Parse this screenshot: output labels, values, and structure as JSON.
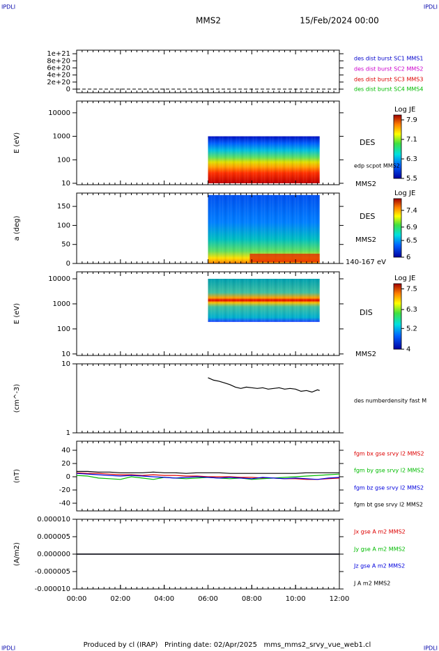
{
  "header": {
    "corner_labels": [
      "IPDLI",
      "IPDLI",
      "IPDLI",
      "IPDLI"
    ],
    "mission": "MMS2",
    "date": "15/Feb/2024 00:00"
  },
  "chart_data": [
    {
      "type": "line",
      "xlim": [
        0,
        12
      ],
      "ylim": [
        -1e+20,
        1.1e+21
      ],
      "yticks": [
        0,
        {
          "value": 2e+20,
          "label": "2e+20"
        },
        {
          "value": 4e+20,
          "label": "4e+20"
        },
        {
          "value": 6e+20,
          "label": "6e+20"
        },
        {
          "value": 8e+20,
          "label": "8e+20"
        },
        {
          "value": 1e+21,
          "label": "1e+21"
        }
      ],
      "series": [
        {
          "name": "des dist burst SC1 MMS1",
          "color": "#0000cc"
        },
        {
          "name": "des dist burst SC2 MMS2",
          "color": "#cc00cc"
        },
        {
          "name": "des dist burst SC3 MMS3",
          "color": "#dd0000"
        },
        {
          "name": "des dist burst SC4 MMS4",
          "color": "#00bb00"
        }
      ]
    },
    {
      "type": "spectrogram",
      "ylabel": "E (eV)",
      "log": true,
      "xlim": [
        0,
        12
      ],
      "ylim": [
        8.7,
        31600
      ],
      "yticks": [
        10,
        100,
        1000,
        10000
      ],
      "x": [
        6.0,
        11.1
      ],
      "y": [
        10,
        1000
      ],
      "side_labels": [
        "DES",
        "edp scpot MMS2",
        "MMS2"
      ],
      "colorbar": {
        "label": "Log JE",
        "lim": [
          5.5,
          8.1
        ],
        "ticks": [
          7.9,
          7.1,
          6.3,
          5.5
        ]
      }
    },
    {
      "type": "spectrogram",
      "ylabel": "a (deg)",
      "xlim": [
        0,
        12
      ],
      "ylim": [
        0,
        185
      ],
      "yticks": [
        0,
        50,
        100,
        150
      ],
      "x": [
        6.0,
        11.1
      ],
      "y": [
        0,
        180
      ],
      "side_labels": [
        "DES",
        "MMS2",
        "140-167 eV"
      ],
      "colorbar": {
        "label": "Log JE",
        "lim": [
          6.0,
          7.75
        ],
        "ticks": [
          7.4,
          6.9,
          6.5,
          6.0
        ]
      }
    },
    {
      "type": "spectrogram",
      "ylabel": "E (eV)",
      "log": true,
      "xlim": [
        0,
        12
      ],
      "ylim": [
        8.7,
        19000
      ],
      "yticks": [
        10,
        100,
        1000,
        10000
      ],
      "x": [
        6.0,
        11.1
      ],
      "y": [
        190,
        10000
      ],
      "side_labels": [
        "DIS",
        "MMS2"
      ],
      "colorbar": {
        "label": "Log JE",
        "lim": [
          4.0,
          7.8
        ],
        "ticks": [
          7.5,
          6.3,
          5.2,
          4.0
        ]
      }
    },
    {
      "type": "line",
      "ylabel": "(cm^-3)",
      "log": true,
      "xlim": [
        0,
        12
      ],
      "ylim": [
        1,
        10
      ],
      "yticks": [
        1,
        10
      ],
      "x": [
        6.0,
        6.25,
        6.5,
        6.75,
        7.0,
        7.25,
        7.5,
        7.75,
        8.0,
        8.25,
        8.5,
        8.75,
        9.0,
        9.25,
        9.5,
        9.75,
        10.0,
        10.25,
        10.5,
        10.75,
        11.0,
        11.1
      ],
      "series": [
        {
          "name": "des numberdensity fast M",
          "color": "#000000",
          "values": [
            6.3,
            5.8,
            5.6,
            5.3,
            5.0,
            4.6,
            4.4,
            4.6,
            4.5,
            4.4,
            4.5,
            4.3,
            4.4,
            4.5,
            4.3,
            4.4,
            4.3,
            4.0,
            4.1,
            3.9,
            4.2,
            4.1
          ]
        }
      ]
    },
    {
      "type": "line",
      "ylabel": "(nT)",
      "xlim": [
        0,
        12
      ],
      "ylim": [
        -51.6,
        53.7
      ],
      "yticks": [
        -40,
        -20,
        0,
        20,
        40
      ],
      "x": [
        0,
        0.5,
        1,
        1.5,
        2,
        2.5,
        3,
        3.5,
        4,
        4.5,
        5,
        5.5,
        6,
        6.5,
        7,
        7.5,
        8,
        8.5,
        9,
        9.5,
        10,
        10.5,
        11,
        11.5,
        12
      ],
      "series": [
        {
          "name": "fgm bx gse srvy l2 MMS2",
          "color": "#dd0000",
          "values": [
            6,
            5,
            5,
            4,
            3,
            3,
            2,
            3,
            2,
            2,
            1,
            1,
            0,
            0,
            0,
            -1,
            -1,
            -2,
            -2,
            -3,
            -3,
            -4,
            -4,
            -3,
            -2
          ]
        },
        {
          "name": "fgm by gse srvy l2 MMS2",
          "color": "#00bb00",
          "values": [
            2,
            1,
            -2,
            -3,
            -4,
            0,
            -2,
            -4,
            -1,
            -2,
            -3,
            -2,
            -1,
            -2,
            -3,
            -2,
            -4,
            -3,
            -2,
            -1,
            0,
            1,
            2,
            3,
            4
          ]
        },
        {
          "name": "fgm bz gse srvy l2 MMS2",
          "color": "#0000dd",
          "values": [
            5,
            4,
            3,
            2,
            1,
            2,
            1,
            0,
            -1,
            -2,
            -1,
            0,
            -1,
            -2,
            -1,
            -2,
            -3,
            -1,
            -2,
            -3,
            -2,
            -3,
            -4,
            -2,
            -1
          ]
        },
        {
          "name": "fgm bt gse srvy l2 MMS2",
          "color": "#000000",
          "values": [
            8,
            8,
            7,
            7,
            6,
            6,
            6,
            7,
            6,
            6,
            5,
            6,
            6,
            6,
            5,
            5,
            5,
            5,
            5,
            5,
            5,
            6,
            6,
            6,
            6
          ]
        }
      ]
    },
    {
      "type": "line",
      "ylabel": "(A/m2)",
      "xlim": [
        0,
        12
      ],
      "ylim": [
        -1e-05,
        1e-05
      ],
      "yticks": [
        {
          "value": -1e-05,
          "label": "-0.000010"
        },
        {
          "value": -5e-06,
          "label": "-0.000005"
        },
        {
          "value": 0,
          "label": "0.000000"
        },
        {
          "value": 5e-06,
          "label": "0.000005"
        },
        {
          "value": 1e-05,
          "label": "0.000010"
        }
      ],
      "xticks": [
        {
          "value": 0,
          "label": "00:00"
        },
        {
          "value": 2,
          "label": "02:00"
        },
        {
          "value": 4,
          "label": "04:00"
        },
        {
          "value": 6,
          "label": "06:00"
        },
        {
          "value": 8,
          "label": "08:00"
        },
        {
          "value": 10,
          "label": "10:00"
        },
        {
          "value": 12,
          "label": "12:00"
        }
      ],
      "x": [
        0,
        12
      ],
      "series": [
        {
          "name": "Jx gse A m2 MMS2",
          "color": "#dd0000",
          "values": [
            0,
            0
          ]
        },
        {
          "name": "Jy gse A m2 MMS2",
          "color": "#00bb00",
          "values": [
            0,
            0
          ]
        },
        {
          "name": "Jz gse A m2 MMS2",
          "color": "#0000dd",
          "values": [
            0,
            0
          ]
        },
        {
          "name": "J A m2 MMS2",
          "color": "#000000",
          "values": [
            0,
            0
          ]
        }
      ]
    }
  ],
  "footer": "Produced by cl (IRAP)   Printing date: 02/Apr/2025   mms_mms2_srvy_vue_web1.cl"
}
